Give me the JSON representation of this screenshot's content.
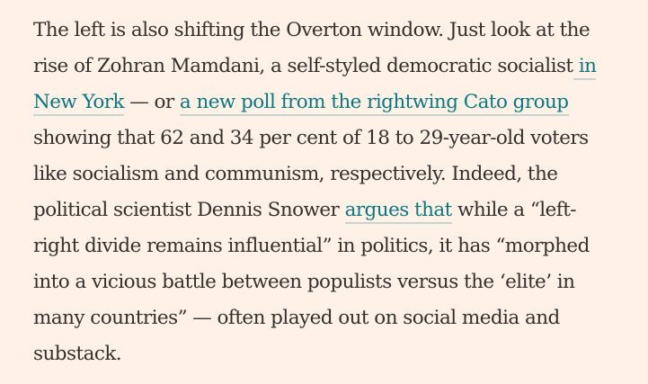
{
  "article": {
    "line1": "The left is also shifting the Overton window. Just look at the",
    "line2_text": "rise of Zohran Mamdani, a self-styled democratic socialist",
    "link_in_new_york_part1": " in",
    "link_in_new_york_part2": "New York",
    "line3_mid": " — or ",
    "link_cato_poll": "a new poll from the rightwing Cato group",
    "line4": "showing that 62 and 34 per cent of 18 to 29-year-old voters",
    "line5": "like socialism and communism, respectively. Indeed, the",
    "line6_text": "political scientist Dennis Snower ",
    "link_argues_that": "argues that",
    "line6_end": " while a “left-",
    "line7": "right divide remains influential” in politics, it has “morphed",
    "line8": "into a vicious battle between populists versus the ‘elite’ in",
    "line9": "many countries” — often played out on social media and",
    "line10": "substack."
  },
  "colors": {
    "background": "#fff1e5",
    "text": "#33302e",
    "link": "#0d7680",
    "link_underline": "#c7d3cf"
  }
}
